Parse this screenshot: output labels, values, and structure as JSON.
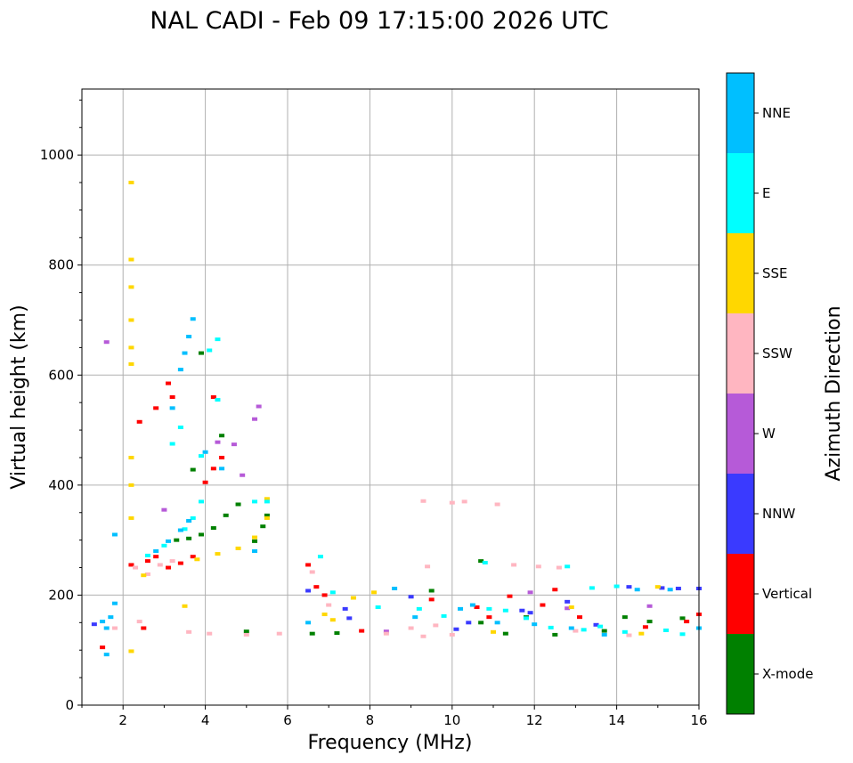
{
  "chart_data": {
    "type": "scatter",
    "title": "NAL CADI - Feb 09 17:15:00 2026 UTC",
    "xlabel": "Frequency (MHz)",
    "ylabel": "Virtual height (km)",
    "xlim": [
      1,
      16
    ],
    "ylim": [
      0,
      1120
    ],
    "xticks": [
      2,
      4,
      6,
      8,
      10,
      12,
      14,
      16
    ],
    "yticks": [
      0,
      200,
      400,
      600,
      800,
      1000
    ],
    "grid": true,
    "colorbar": {
      "label": "Azimuth Direction",
      "categories": [
        "X-mode",
        "Vertical",
        "NNW",
        "W",
        "SSW",
        "SSE",
        "E",
        "NNE"
      ],
      "colors": [
        "#008000",
        "#ff0000",
        "#3a3aff",
        "#b65ad8",
        "#ffb6c1",
        "#ffd700",
        "#00ffff",
        "#00bfff"
      ]
    },
    "series": [
      {
        "name": "X-mode",
        "points": [
          [
            3.3,
            300
          ],
          [
            3.6,
            303
          ],
          [
            3.9,
            310
          ],
          [
            4.2,
            322
          ],
          [
            4.5,
            345
          ],
          [
            4.8,
            365
          ],
          [
            5.2,
            298
          ],
          [
            5.4,
            325
          ],
          [
            5.5,
            345
          ],
          [
            3.9,
            640
          ],
          [
            3.7,
            428
          ],
          [
            4.4,
            490
          ],
          [
            5.0,
            134
          ],
          [
            6.6,
            130
          ],
          [
            7.2,
            131
          ],
          [
            9.5,
            208
          ],
          [
            10.7,
            150
          ],
          [
            11.3,
            130
          ],
          [
            11.8,
            160
          ],
          [
            12.5,
            128
          ],
          [
            13.7,
            135
          ],
          [
            14.2,
            160
          ],
          [
            14.8,
            152
          ],
          [
            15.6,
            158
          ],
          [
            10.7,
            262
          ]
        ]
      },
      {
        "name": "Vertical",
        "points": [
          [
            2.2,
            255
          ],
          [
            2.6,
            262
          ],
          [
            2.8,
            270
          ],
          [
            3.1,
            250
          ],
          [
            3.4,
            258
          ],
          [
            3.7,
            270
          ],
          [
            4.0,
            405
          ],
          [
            4.2,
            430
          ],
          [
            3.1,
            585
          ],
          [
            3.2,
            560
          ],
          [
            2.4,
            515
          ],
          [
            2.8,
            540
          ],
          [
            4.2,
            560
          ],
          [
            4.4,
            450
          ],
          [
            1.5,
            105
          ],
          [
            2.5,
            140
          ],
          [
            6.7,
            215
          ],
          [
            6.9,
            200
          ],
          [
            7.8,
            135
          ],
          [
            9.5,
            192
          ],
          [
            10.6,
            178
          ],
          [
            10.9,
            160
          ],
          [
            11.4,
            198
          ],
          [
            12.2,
            182
          ],
          [
            12.5,
            210
          ],
          [
            13.1,
            160
          ],
          [
            14.7,
            142
          ],
          [
            15.7,
            152
          ],
          [
            16.0,
            165
          ],
          [
            6.5,
            255
          ]
        ]
      },
      {
        "name": "NNW",
        "points": [
          [
            6.5,
            208
          ],
          [
            7.4,
            175
          ],
          [
            7.5,
            158
          ],
          [
            9.0,
            197
          ],
          [
            10.1,
            138
          ],
          [
            11.7,
            172
          ],
          [
            11.9,
            168
          ],
          [
            12.8,
            188
          ],
          [
            14.3,
            215
          ],
          [
            15.1,
            213
          ],
          [
            15.5,
            212
          ],
          [
            16.0,
            212
          ],
          [
            10.4,
            150
          ],
          [
            13.5,
            146
          ],
          [
            1.3,
            147
          ]
        ]
      },
      {
        "name": "W",
        "points": [
          [
            4.3,
            478
          ],
          [
            4.7,
            474
          ],
          [
            5.2,
            520
          ],
          [
            5.3,
            543
          ],
          [
            4.9,
            418
          ],
          [
            1.6,
            660
          ],
          [
            8.4,
            134
          ],
          [
            11.9,
            205
          ],
          [
            12.8,
            176
          ],
          [
            14.8,
            180
          ],
          [
            3.0,
            355
          ]
        ]
      },
      {
        "name": "SSW",
        "points": [
          [
            2.3,
            250
          ],
          [
            2.6,
            238
          ],
          [
            2.9,
            255
          ],
          [
            3.2,
            262
          ],
          [
            3.6,
            133
          ],
          [
            4.1,
            130
          ],
          [
            5.0,
            128
          ],
          [
            5.8,
            130
          ],
          [
            6.6,
            242
          ],
          [
            7.0,
            182
          ],
          [
            8.4,
            130
          ],
          [
            9.0,
            140
          ],
          [
            9.3,
            125
          ],
          [
            9.6,
            145
          ],
          [
            10.0,
            128
          ],
          [
            9.3,
            371
          ],
          [
            10.0,
            368
          ],
          [
            10.3,
            370
          ],
          [
            11.1,
            365
          ],
          [
            9.4,
            252
          ],
          [
            11.5,
            255
          ],
          [
            12.1,
            252
          ],
          [
            12.6,
            250
          ],
          [
            13.0,
            135
          ],
          [
            14.3,
            127
          ],
          [
            1.8,
            140
          ],
          [
            2.4,
            152
          ]
        ]
      },
      {
        "name": "SSE",
        "points": [
          [
            2.2,
            950
          ],
          [
            2.2,
            810
          ],
          [
            2.2,
            760
          ],
          [
            2.2,
            700
          ],
          [
            2.2,
            650
          ],
          [
            2.2,
            620
          ],
          [
            2.2,
            450
          ],
          [
            2.2,
            400
          ],
          [
            2.2,
            340
          ],
          [
            2.2,
            98
          ],
          [
            2.5,
            236
          ],
          [
            3.8,
            265
          ],
          [
            4.3,
            275
          ],
          [
            4.8,
            285
          ],
          [
            5.2,
            305
          ],
          [
            5.5,
            340
          ],
          [
            5.5,
            375
          ],
          [
            6.9,
            165
          ],
          [
            7.1,
            155
          ],
          [
            7.6,
            195
          ],
          [
            8.1,
            205
          ],
          [
            11.0,
            133
          ],
          [
            12.9,
            178
          ],
          [
            14.6,
            130
          ],
          [
            15.0,
            215
          ],
          [
            3.5,
            180
          ]
        ]
      },
      {
        "name": "E",
        "points": [
          [
            2.6,
            272
          ],
          [
            3.0,
            290
          ],
          [
            3.5,
            320
          ],
          [
            3.7,
            340
          ],
          [
            3.9,
            370
          ],
          [
            3.2,
            475
          ],
          [
            3.4,
            505
          ],
          [
            3.9,
            453
          ],
          [
            4.3,
            555
          ],
          [
            4.1,
            645
          ],
          [
            4.3,
            665
          ],
          [
            5.2,
            370
          ],
          [
            5.5,
            370
          ],
          [
            6.8,
            270
          ],
          [
            7.1,
            205
          ],
          [
            8.2,
            178
          ],
          [
            9.2,
            175
          ],
          [
            9.8,
            162
          ],
          [
            10.9,
            175
          ],
          [
            11.3,
            172
          ],
          [
            11.8,
            158
          ],
          [
            12.4,
            141
          ],
          [
            13.2,
            137
          ],
          [
            13.6,
            143
          ],
          [
            14.2,
            133
          ],
          [
            15.2,
            136
          ],
          [
            15.6,
            129
          ],
          [
            13.4,
            213
          ],
          [
            14.0,
            216
          ],
          [
            12.8,
            252
          ],
          [
            10.8,
            259
          ]
        ]
      },
      {
        "name": "NNE",
        "points": [
          [
            1.5,
            152
          ],
          [
            1.6,
            140
          ],
          [
            1.7,
            160
          ],
          [
            1.8,
            185
          ],
          [
            2.8,
            280
          ],
          [
            3.1,
            298
          ],
          [
            3.4,
            318
          ],
          [
            3.6,
            335
          ],
          [
            3.2,
            540
          ],
          [
            3.4,
            610
          ],
          [
            3.5,
            640
          ],
          [
            3.6,
            670
          ],
          [
            3.7,
            702
          ],
          [
            4.0,
            460
          ],
          [
            4.4,
            430
          ],
          [
            1.8,
            310
          ],
          [
            1.6,
            92
          ],
          [
            6.5,
            150
          ],
          [
            8.6,
            212
          ],
          [
            9.1,
            160
          ],
          [
            10.2,
            175
          ],
          [
            10.5,
            182
          ],
          [
            11.1,
            150
          ],
          [
            12.0,
            147
          ],
          [
            12.9,
            140
          ],
          [
            13.7,
            128
          ],
          [
            14.5,
            210
          ],
          [
            15.3,
            210
          ],
          [
            16.0,
            140
          ],
          [
            5.2,
            280
          ]
        ]
      }
    ]
  }
}
